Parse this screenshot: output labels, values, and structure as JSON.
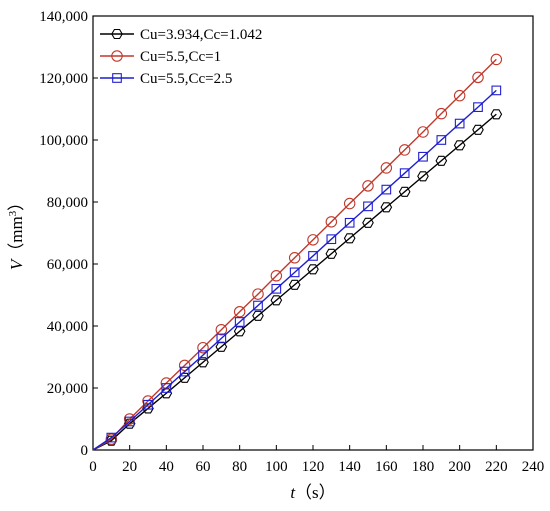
{
  "chart_data": {
    "type": "line",
    "xlabel": {
      "symbol": "t",
      "unit": "（s）"
    },
    "ylabel": {
      "symbol": "V",
      "unit_prefix": "（mm",
      "unit_exp": "3",
      "unit_suffix": "）"
    },
    "xlim": [
      0,
      240
    ],
    "ylim": [
      0,
      140000
    ],
    "xticks": [
      "0",
      "20",
      "40",
      "60",
      "80",
      "100",
      "120",
      "140",
      "160",
      "180",
      "200",
      "220",
      "240"
    ],
    "yticks": [
      "0",
      "20,000",
      "40,000",
      "60,000",
      "80,000",
      "100,000",
      "120,000",
      "140,000"
    ],
    "grid": false,
    "legend_position": "top-left",
    "x": [
      0,
      10,
      20,
      30,
      40,
      50,
      60,
      70,
      80,
      90,
      100,
      110,
      120,
      130,
      140,
      150,
      160,
      170,
      180,
      190,
      200,
      210,
      220
    ],
    "series": [
      {
        "name": "Cu=3.934,Cc=1.042",
        "color": "#000000",
        "marker": "hexagon",
        "values": [
          0,
          3000,
          8500,
          13400,
          18300,
          23300,
          28300,
          33300,
          38300,
          43300,
          48300,
          53300,
          58300,
          63300,
          68300,
          73300,
          78300,
          83300,
          88300,
          93300,
          98300,
          103300,
          108300
        ]
      },
      {
        "name": "Cu=5.5,Cc=1",
        "color": "#c0392b",
        "marker": "circle",
        "values": [
          0,
          3500,
          10000,
          15800,
          21600,
          27300,
          33000,
          38800,
          44600,
          50300,
          56200,
          62000,
          67800,
          73600,
          79500,
          85200,
          91000,
          96800,
          102600,
          108500,
          114300,
          120200,
          126000
        ]
      },
      {
        "name": "Cu=5.5,Cc=2.5",
        "color": "#1f1fd0",
        "marker": "square",
        "values": [
          0,
          4000,
          9200,
          14600,
          20000,
          25300,
          30600,
          36000,
          41300,
          46600,
          52000,
          57300,
          62600,
          68000,
          73300,
          78600,
          84000,
          89300,
          94600,
          100000,
          105300,
          110600,
          116000
        ]
      }
    ]
  }
}
